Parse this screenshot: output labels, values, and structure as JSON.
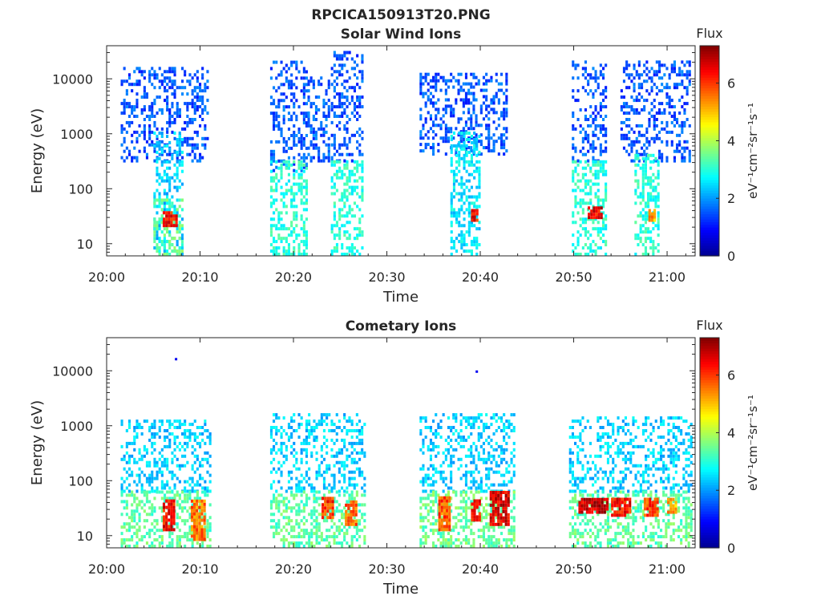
{
  "figure": {
    "title": "RPCICA150913T20.PNG"
  },
  "colorbar": {
    "title": "Flux",
    "unit_label": "eV⁻¹cm⁻²sr⁻¹s⁻¹",
    "range": [
      0,
      7.3
    ],
    "ticks": [
      "0",
      "2",
      "4",
      "6"
    ],
    "colormap": "jet",
    "colors": [
      "#00008f",
      "#0000ff",
      "#0080ff",
      "#00ffff",
      "#80ff80",
      "#ffff00",
      "#ff8000",
      "#ff0000",
      "#800000"
    ]
  },
  "chart_data": [
    {
      "type": "heatmap",
      "title": "Solar Wind Ions",
      "xlabel": "Time",
      "ylabel": "Energy (eV)",
      "x_ticks": [
        "20:00",
        "20:10",
        "20:20",
        "20:30",
        "20:40",
        "20:50",
        "21:00"
      ],
      "y_ticks": [
        "10",
        "100",
        "1000",
        "10000"
      ],
      "y_scale": "log",
      "ylim": [
        6,
        40000
      ],
      "xlim_minutes": [
        0,
        63
      ],
      "clusters": [
        {
          "t_start": 1.5,
          "t_end": 10.8,
          "e_low": 300,
          "e_high": 15000,
          "flux": 1.5
        },
        {
          "t_start": 5.0,
          "t_end": 8.2,
          "e_low": 6,
          "e_high": 1000,
          "flux": 2.4
        },
        {
          "t_start": 5.0,
          "t_end": 8.2,
          "e_low": 6,
          "e_high": 60,
          "flux": 3.4
        },
        {
          "t_start": 6.0,
          "t_end": 7.5,
          "e_low": 20,
          "e_high": 35,
          "flux": 6.2
        },
        {
          "t_start": 17.5,
          "t_end": 21.5,
          "e_low": 200,
          "e_high": 20000,
          "flux": 1.5
        },
        {
          "t_start": 17.5,
          "t_end": 21.5,
          "e_low": 6,
          "e_high": 300,
          "flux": 3.0
        },
        {
          "t_start": 21.5,
          "t_end": 23.8,
          "e_low": 300,
          "e_high": 10000,
          "flux": 1.6
        },
        {
          "t_start": 24.0,
          "t_end": 27.5,
          "e_low": 300,
          "e_high": 30000,
          "flux": 1.5
        },
        {
          "t_start": 24.0,
          "t_end": 27.5,
          "e_low": 6,
          "e_high": 300,
          "flux": 3.0
        },
        {
          "t_start": 33.5,
          "t_end": 42.8,
          "e_low": 400,
          "e_high": 12000,
          "flux": 1.5
        },
        {
          "t_start": 36.8,
          "t_end": 40.0,
          "e_low": 6,
          "e_high": 1000,
          "flux": 2.6
        },
        {
          "t_start": 39.0,
          "t_end": 39.7,
          "e_low": 25,
          "e_high": 40,
          "flux": 6.3
        },
        {
          "t_start": 49.8,
          "t_end": 53.5,
          "e_low": 300,
          "e_high": 20000,
          "flux": 1.5
        },
        {
          "t_start": 49.8,
          "t_end": 53.5,
          "e_low": 6,
          "e_high": 300,
          "flux": 3.0
        },
        {
          "t_start": 51.5,
          "t_end": 53.0,
          "e_low": 28,
          "e_high": 42,
          "flux": 6.5
        },
        {
          "t_start": 55.0,
          "t_end": 62.5,
          "e_low": 300,
          "e_high": 20000,
          "flux": 1.5
        },
        {
          "t_start": 56.5,
          "t_end": 59.0,
          "e_low": 6,
          "e_high": 400,
          "flux": 3.0
        },
        {
          "t_start": 58.0,
          "t_end": 58.8,
          "e_low": 25,
          "e_high": 40,
          "flux": 5.2
        }
      ]
    },
    {
      "type": "heatmap",
      "title": "Cometary Ions",
      "xlabel": "Time",
      "ylabel": "Energy (eV)",
      "x_ticks": [
        "20:00",
        "20:10",
        "20:20",
        "20:30",
        "20:40",
        "20:50",
        "21:00"
      ],
      "y_ticks": [
        "10",
        "100",
        "1000",
        "10000"
      ],
      "y_scale": "log",
      "ylim": [
        6,
        40000
      ],
      "xlim_minutes": [
        0,
        63
      ],
      "clusters": [
        {
          "t_start": 1.5,
          "t_end": 11.0,
          "e_low": 60,
          "e_high": 1200,
          "flux": 2.4
        },
        {
          "t_start": 1.5,
          "t_end": 11.0,
          "e_low": 6,
          "e_high": 60,
          "flux": 3.4
        },
        {
          "t_start": 6.0,
          "t_end": 7.3,
          "e_low": 12,
          "e_high": 45,
          "flux": 6.4
        },
        {
          "t_start": 9.0,
          "t_end": 10.5,
          "e_low": 8,
          "e_high": 45,
          "flux": 5.5
        },
        {
          "t_start": 17.5,
          "t_end": 27.5,
          "e_low": 60,
          "e_high": 1500,
          "flux": 2.4
        },
        {
          "t_start": 17.5,
          "t_end": 27.5,
          "e_low": 6,
          "e_high": 60,
          "flux": 3.4
        },
        {
          "t_start": 23.0,
          "t_end": 24.2,
          "e_low": 20,
          "e_high": 45,
          "flux": 6.0
        },
        {
          "t_start": 25.5,
          "t_end": 26.8,
          "e_low": 15,
          "e_high": 40,
          "flux": 5.6
        },
        {
          "t_start": 33.5,
          "t_end": 43.5,
          "e_low": 60,
          "e_high": 1500,
          "flux": 2.4
        },
        {
          "t_start": 33.5,
          "t_end": 43.5,
          "e_low": 6,
          "e_high": 60,
          "flux": 3.5
        },
        {
          "t_start": 35.5,
          "t_end": 36.8,
          "e_low": 12,
          "e_high": 50,
          "flux": 5.8
        },
        {
          "t_start": 39.0,
          "t_end": 40.0,
          "e_low": 18,
          "e_high": 45,
          "flux": 6.2
        },
        {
          "t_start": 41.0,
          "t_end": 43.0,
          "e_low": 15,
          "e_high": 60,
          "flux": 6.6
        },
        {
          "t_start": 49.5,
          "t_end": 62.5,
          "e_low": 60,
          "e_high": 1300,
          "flux": 2.4
        },
        {
          "t_start": 49.5,
          "t_end": 62.5,
          "e_low": 6,
          "e_high": 60,
          "flux": 3.4
        },
        {
          "t_start": 50.5,
          "t_end": 53.5,
          "e_low": 25,
          "e_high": 45,
          "flux": 6.8
        },
        {
          "t_start": 54.0,
          "t_end": 56.0,
          "e_low": 22,
          "e_high": 45,
          "flux": 6.3
        },
        {
          "t_start": 57.5,
          "t_end": 59.0,
          "e_low": 22,
          "e_high": 45,
          "flux": 6.0
        },
        {
          "t_start": 60.0,
          "t_end": 61.0,
          "e_low": 25,
          "e_high": 45,
          "flux": 5.2
        }
      ],
      "isolated_points": [
        {
          "t": 7.3,
          "e": 16000,
          "flux": 0.8
        },
        {
          "t": 39.5,
          "e": 9500,
          "flux": 0.8
        }
      ]
    }
  ]
}
